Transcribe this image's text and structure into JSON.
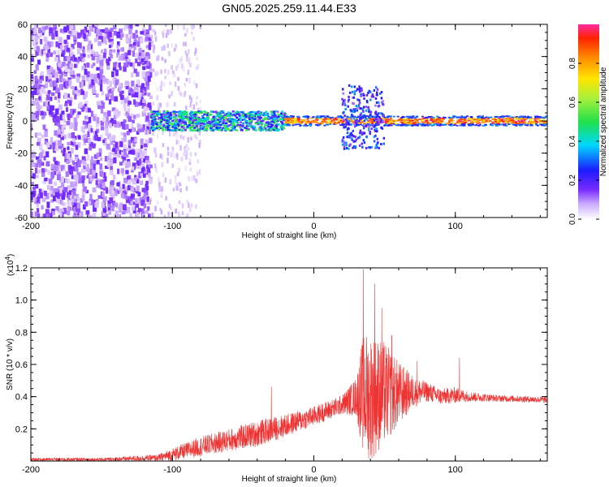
{
  "title": "GN05.2025.259.11.44.E33",
  "colors": {
    "snr_line": "#ee3333",
    "axis": "#000000",
    "background": "#ffffff"
  },
  "chart_data": [
    {
      "type": "heatmap",
      "description_id": "spectrogram",
      "xlabel": "Height of straight line (km)",
      "ylabel": "Frequency (Hz)",
      "xlim": [
        -200,
        165
      ],
      "ylim": [
        -60,
        60
      ],
      "x_ticks": [
        -200,
        -100,
        0,
        100
      ],
      "x_tick_labels": [
        "-200",
        "-100",
        "0",
        "100"
      ],
      "y_ticks": [
        -60,
        -40,
        -20,
        0,
        20,
        40,
        60
      ],
      "y_tick_labels": [
        "-60",
        "-40",
        "-20",
        "0",
        "20",
        "40",
        "60"
      ],
      "colorbar": {
        "label": "Normalized spectral amplitude",
        "range": [
          0,
          1
        ],
        "ticks": [
          0.0,
          0.2,
          0.4,
          0.6,
          0.8
        ],
        "tick_labels": [
          "0.0",
          "0.2",
          "0.4",
          "0.6",
          "0.8"
        ],
        "colormap": "rainbow-violet-to-red"
      },
      "regions": [
        {
          "x_range": [
            -200,
            -115
          ],
          "freq_range": [
            -60,
            60
          ],
          "amplitude": 0.1,
          "texture": "dense noise"
        },
        {
          "x_range": [
            -115,
            -80
          ],
          "freq_range": [
            -60,
            60
          ],
          "amplitude": 0.03,
          "texture": "sparse noise"
        },
        {
          "x_range": [
            -115,
            -20
          ],
          "freq_center": 0,
          "freq_halfwidth": 6,
          "amplitude": 0.35
        },
        {
          "x_range": [
            -20,
            165
          ],
          "freq_center": 0,
          "freq_halfwidth": 3,
          "amplitude": 0.85
        },
        {
          "x_range": [
            20,
            50
          ],
          "freq_range": [
            -18,
            22
          ],
          "amplitude": 0.25
        }
      ]
    },
    {
      "type": "line",
      "description_id": "snr",
      "xlabel": "Height of straight line (km)",
      "ylabel": "SNR (10 * v/v)",
      "y_scale_label": "(x10",
      "y_scale_exponent": "4",
      "y_scale_suffix": ")",
      "xlim": [
        -200,
        165
      ],
      "ylim": [
        0,
        1.2
      ],
      "x_ticks": [
        -200,
        -100,
        0,
        100
      ],
      "x_tick_labels": [
        "-200",
        "-100",
        "0",
        "100"
      ],
      "y_ticks": [
        0.2,
        0.4,
        0.6,
        0.8,
        1.0,
        1.2
      ],
      "y_tick_labels": [
        "0.2",
        "0.4",
        "0.6",
        "0.8",
        "1.0",
        "1.2"
      ],
      "envelope": {
        "x": [
          -200,
          -150,
          -110,
          -100,
          -80,
          -60,
          -40,
          -20,
          0,
          20,
          30,
          35,
          40,
          50,
          60,
          70,
          80,
          90,
          100,
          110,
          130,
          165
        ],
        "y_mean": [
          0.01,
          0.01,
          0.02,
          0.04,
          0.09,
          0.13,
          0.17,
          0.22,
          0.28,
          0.35,
          0.4,
          0.42,
          0.4,
          0.42,
          0.42,
          0.43,
          0.43,
          0.4,
          0.41,
          0.4,
          0.39,
          0.38
        ],
        "y_amp": [
          0.01,
          0.01,
          0.02,
          0.04,
          0.06,
          0.07,
          0.08,
          0.07,
          0.06,
          0.06,
          0.12,
          0.38,
          0.4,
          0.32,
          0.2,
          0.1,
          0.06,
          0.05,
          0.05,
          0.03,
          0.02,
          0.02
        ]
      },
      "peaks": [
        {
          "x": 35,
          "y": 1.19
        },
        {
          "x": 43,
          "y": 1.1
        },
        {
          "x": 48,
          "y": 0.95
        },
        {
          "x": 55,
          "y": 0.78
        },
        {
          "x": 73,
          "y": 0.62
        },
        {
          "x": 103,
          "y": 0.64
        },
        {
          "x": -30,
          "y": 0.46
        }
      ]
    }
  ]
}
